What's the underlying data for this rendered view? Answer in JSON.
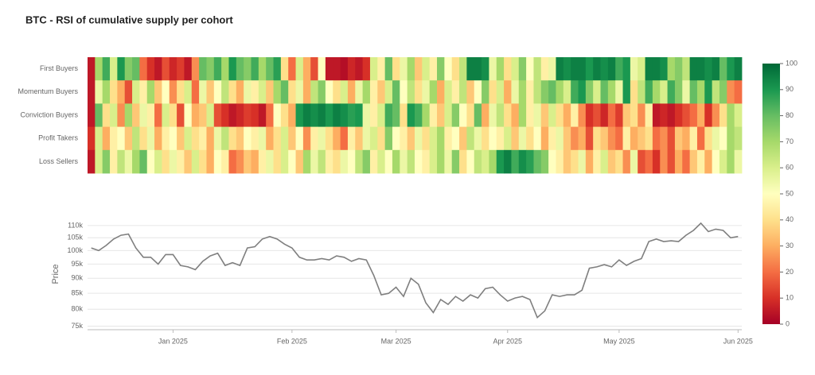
{
  "title": "BTC - RSI of cumulative supply per cohort",
  "chart_data": [
    {
      "type": "heatmap",
      "zlim": [
        0,
        100
      ],
      "zticks": [
        0,
        10,
        20,
        30,
        40,
        50,
        60,
        70,
        80,
        90,
        100
      ],
      "colorscale": [
        "#a50026",
        "#d73027",
        "#f46d43",
        "#fdae61",
        "#fee08b",
        "#ffffbf",
        "#d9ef8b",
        "#a6d96a",
        "#66bd63",
        "#1a9850",
        "#006837"
      ],
      "series": [
        {
          "name": "First Buyers",
          "values": [
            5,
            70,
            85,
            60,
            90,
            75,
            80,
            20,
            10,
            5,
            15,
            8,
            12,
            5,
            25,
            80,
            75,
            85,
            70,
            90,
            80,
            75,
            85,
            70,
            80,
            88,
            40,
            20,
            60,
            30,
            15,
            50,
            5,
            5,
            3,
            8,
            5,
            10,
            60,
            45,
            80,
            40,
            55,
            70,
            35,
            60,
            45,
            75,
            50,
            40,
            65,
            95,
            95,
            92,
            55,
            70,
            40,
            60,
            75,
            50,
            65,
            45,
            55,
            95,
            92,
            95,
            95,
            90,
            95,
            92,
            95,
            85,
            90,
            55,
            60,
            95,
            95,
            92,
            70,
            75,
            65,
            95,
            95,
            92,
            95,
            80,
            90,
            95
          ]
        },
        {
          "name": "Momentum Buyers",
          "values": [
            5,
            55,
            70,
            40,
            30,
            15,
            60,
            45,
            70,
            35,
            50,
            25,
            40,
            60,
            20,
            55,
            35,
            50,
            65,
            40,
            30,
            55,
            45,
            60,
            35,
            70,
            80,
            40,
            55,
            30,
            65,
            75,
            50,
            40,
            60,
            30,
            55,
            70,
            45,
            35,
            60,
            80,
            50,
            65,
            40,
            55,
            70,
            30,
            60,
            45,
            65,
            35,
            50,
            75,
            40,
            60,
            30,
            55,
            70,
            45,
            65,
            75,
            80,
            70,
            60,
            85,
            90,
            75,
            60,
            80,
            70,
            55,
            90,
            40,
            65,
            85,
            70,
            60,
            85,
            75,
            55,
            80,
            70,
            90,
            65,
            75,
            25,
            20
          ]
        },
        {
          "name": "Conviction Buyers",
          "values": [
            5,
            80,
            40,
            60,
            25,
            70,
            35,
            55,
            45,
            20,
            60,
            40,
            15,
            50,
            30,
            35,
            60,
            15,
            10,
            5,
            8,
            12,
            10,
            5,
            20,
            50,
            40,
            30,
            90,
            95,
            92,
            95,
            90,
            95,
            92,
            88,
            90,
            55,
            45,
            60,
            85,
            80,
            40,
            90,
            85,
            70,
            45,
            35,
            60,
            75,
            50,
            40,
            80,
            30,
            55,
            65,
            40,
            30,
            70,
            45,
            55,
            35,
            60,
            40,
            30,
            45,
            25,
            10,
            15,
            8,
            20,
            12,
            35,
            40,
            25,
            45,
            5,
            8,
            5,
            10,
            15,
            20,
            30,
            10,
            25,
            40,
            70,
            60
          ]
        },
        {
          "name": "Profit Takers",
          "values": [
            10,
            60,
            30,
            45,
            50,
            35,
            65,
            40,
            55,
            30,
            45,
            50,
            35,
            60,
            40,
            45,
            30,
            55,
            65,
            40,
            35,
            50,
            45,
            55,
            30,
            40,
            60,
            35,
            50,
            25,
            45,
            55,
            40,
            30,
            20,
            45,
            35,
            55,
            60,
            40,
            75,
            50,
            45,
            35,
            55,
            40,
            60,
            70,
            45,
            50,
            35,
            65,
            55,
            40,
            50,
            45,
            60,
            35,
            55,
            40,
            50,
            30,
            45,
            55,
            35,
            25,
            30,
            15,
            40,
            35,
            25,
            20,
            45,
            30,
            35,
            40,
            20,
            25,
            15,
            35,
            30,
            45,
            20,
            40,
            55,
            50,
            70,
            65
          ]
        },
        {
          "name": "Loss Sellers",
          "values": [
            5,
            60,
            75,
            45,
            65,
            55,
            70,
            80,
            50,
            60,
            40,
            55,
            45,
            35,
            60,
            40,
            30,
            50,
            45,
            20,
            25,
            35,
            30,
            45,
            55,
            40,
            60,
            50,
            35,
            70,
            55,
            65,
            45,
            40,
            55,
            50,
            65,
            75,
            45,
            60,
            50,
            70,
            55,
            65,
            50,
            45,
            60,
            70,
            55,
            75,
            40,
            50,
            65,
            60,
            70,
            90,
            95,
            85,
            92,
            88,
            80,
            75,
            50,
            45,
            35,
            40,
            55,
            30,
            45,
            60,
            35,
            40,
            25,
            55,
            15,
            20,
            10,
            25,
            15,
            30,
            20,
            35,
            45,
            30,
            50,
            60,
            70,
            55
          ]
        }
      ]
    },
    {
      "type": "line",
      "ylabel": "Price",
      "log": true,
      "color": "#7f7f7f",
      "grid": true,
      "ylim": [
        74000,
        113000
      ],
      "yticks": [
        {
          "value": 75000,
          "label": "75k"
        },
        {
          "value": 80000,
          "label": "80k"
        },
        {
          "value": 85000,
          "label": "85k"
        },
        {
          "value": 90000,
          "label": "90k"
        },
        {
          "value": 95000,
          "label": "95k"
        },
        {
          "value": 100000,
          "label": "100k"
        },
        {
          "value": 105000,
          "label": "105k"
        },
        {
          "value": 110000,
          "label": "110k"
        }
      ],
      "categories": [
        null,
        null,
        null,
        null,
        null,
        null,
        null,
        null,
        null,
        null,
        null,
        "Jan 2025",
        null,
        null,
        null,
        null,
        null,
        null,
        null,
        null,
        null,
        null,
        null,
        null,
        null,
        null,
        null,
        "Feb 2025",
        null,
        null,
        null,
        null,
        null,
        null,
        null,
        null,
        null,
        null,
        null,
        null,
        null,
        "Mar 2025",
        null,
        null,
        null,
        null,
        null,
        null,
        null,
        null,
        null,
        null,
        null,
        null,
        null,
        null,
        "Apr 2025",
        null,
        null,
        null,
        null,
        null,
        null,
        null,
        null,
        null,
        null,
        null,
        null,
        null,
        null,
        "May 2025",
        null,
        null,
        null,
        null,
        null,
        null,
        null,
        null,
        null,
        null,
        null,
        null,
        null,
        null,
        null,
        "Jun 2025"
      ],
      "values": [
        101000,
        100000,
        102000,
        104500,
        106000,
        106500,
        101000,
        97500,
        97500,
        95000,
        98500,
        98500,
        94500,
        94000,
        93000,
        96000,
        98000,
        99000,
        94500,
        95500,
        94500,
        101000,
        101500,
        104500,
        105500,
        104500,
        102500,
        101000,
        97500,
        96500,
        96500,
        97000,
        96500,
        98000,
        97500,
        96000,
        97000,
        96500,
        91000,
        84500,
        85000,
        87000,
        84000,
        90000,
        88000,
        82000,
        79000,
        83000,
        81500,
        84000,
        82500,
        84500,
        83500,
        86500,
        87000,
        84500,
        82500,
        83500,
        84000,
        83000,
        77500,
        79500,
        84500,
        84000,
        84500,
        84500,
        86000,
        93500,
        94000,
        94800,
        94000,
        96500,
        94500,
        96000,
        97000,
        103500,
        104500,
        103500,
        103800,
        103500,
        106000,
        108000,
        111000,
        107500,
        108500,
        108000,
        105000,
        105500
      ]
    }
  ]
}
